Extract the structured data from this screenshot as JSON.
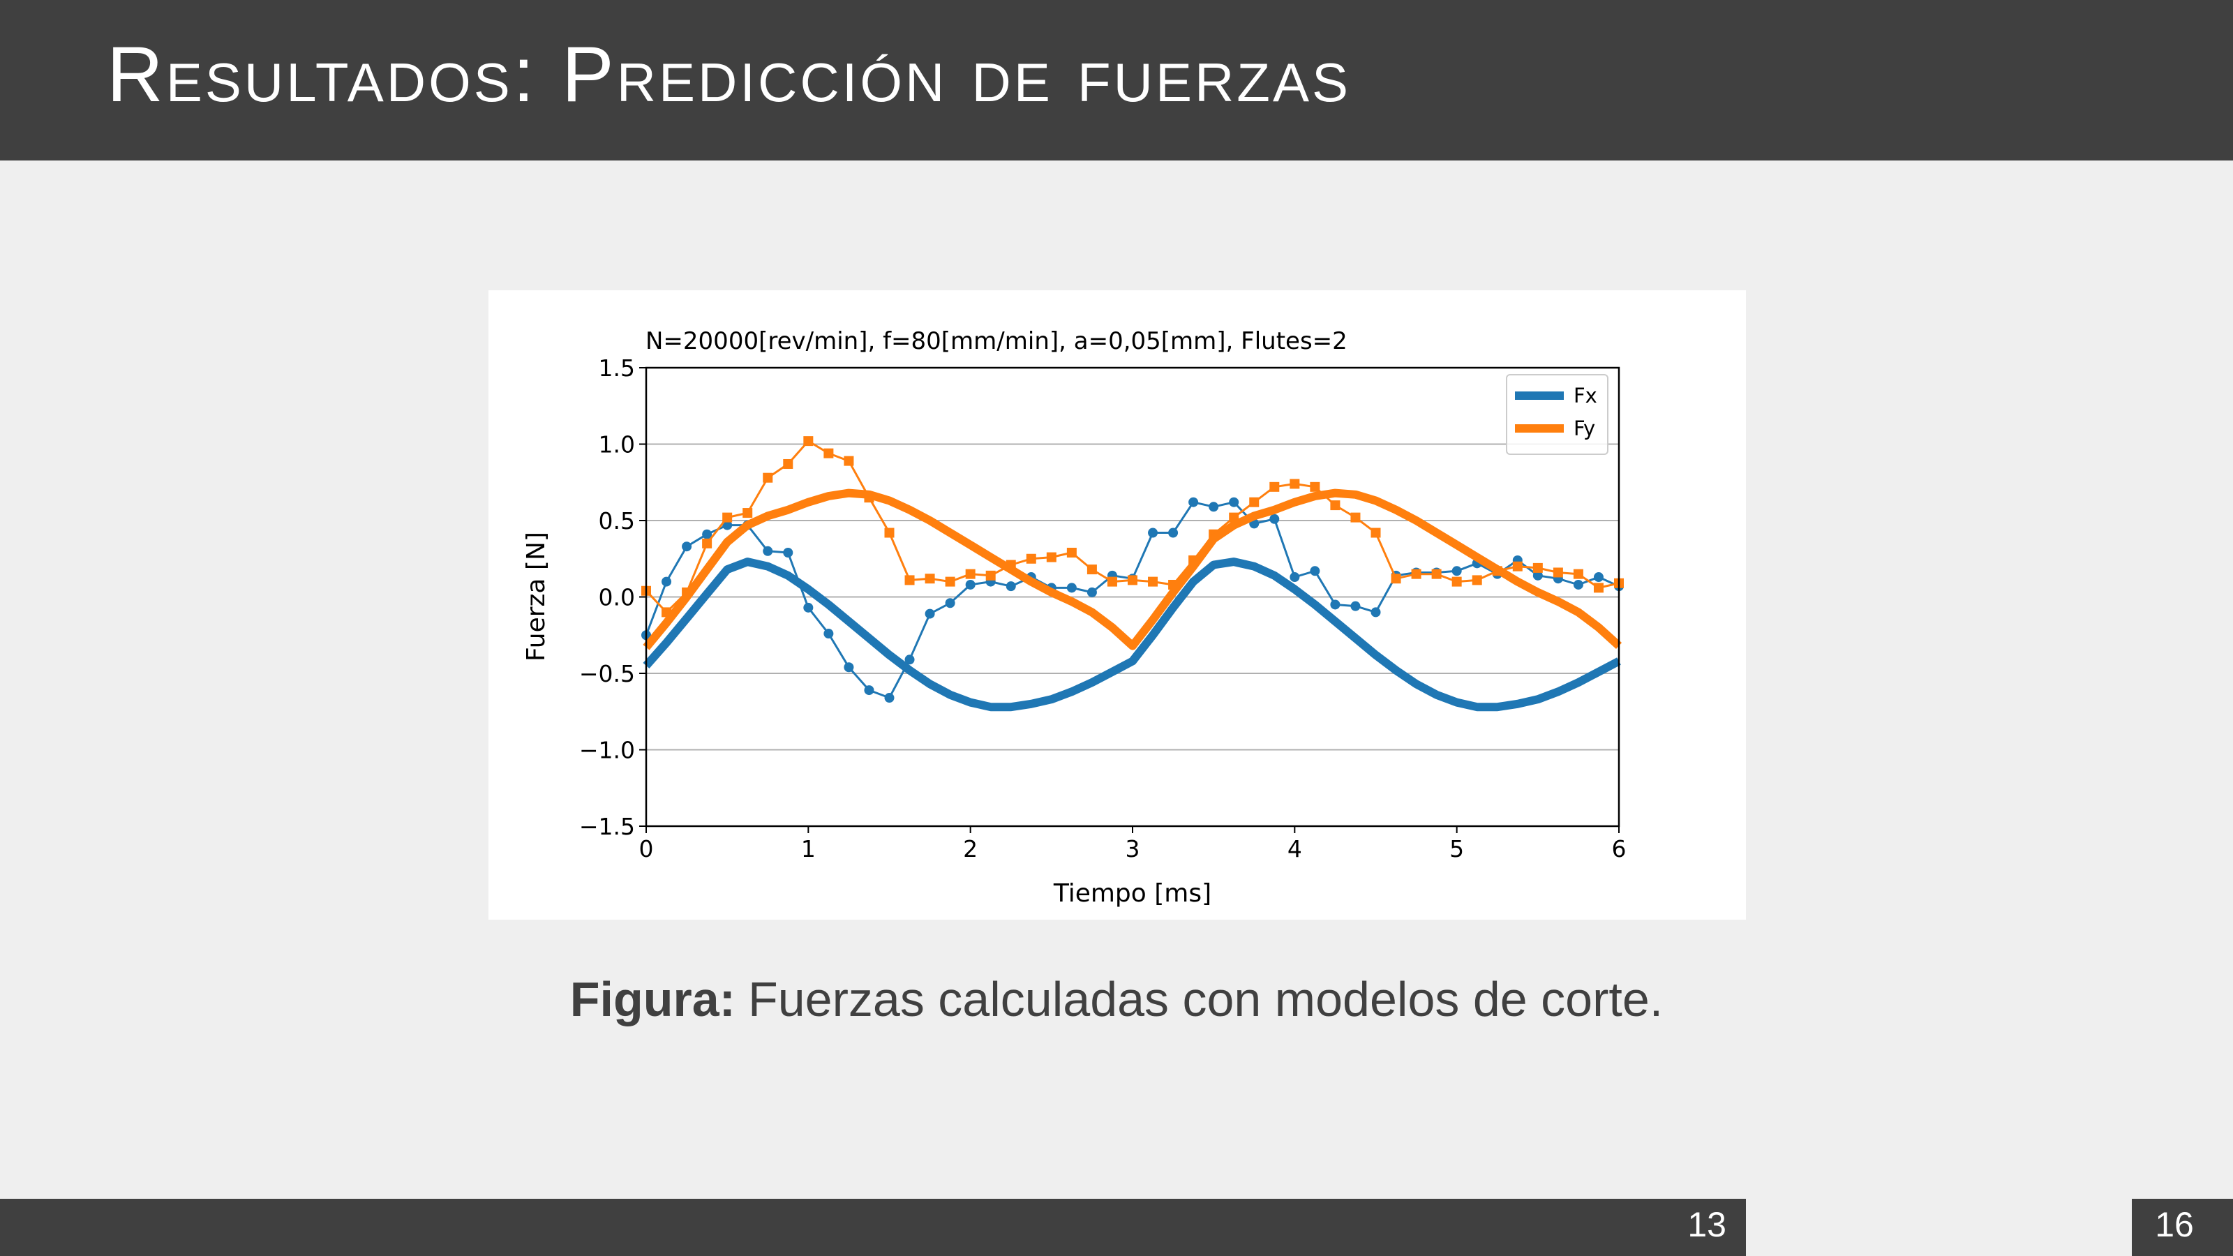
{
  "header": {
    "title": "Resultados: Predicción de fuerzas"
  },
  "chart_data": {
    "type": "line",
    "title": "N=20000[rev/min], f=80[mm/min], a=0,05[mm], Flutes=2",
    "xlabel": "Tiempo [ms]",
    "ylabel": "Fuerza [N]",
    "xlim": [
      0,
      6
    ],
    "ylim": [
      -1.5,
      1.5
    ],
    "xticks": [
      0,
      1,
      2,
      3,
      4,
      5,
      6
    ],
    "yticks": [
      {
        "value": -1.5,
        "label": "−1.5"
      },
      {
        "value": -1,
        "label": "−1.0"
      },
      {
        "value": -0.5,
        "label": "−0.5"
      },
      {
        "value": 0,
        "label": "0.0"
      },
      0.5,
      {
        "value": 1,
        "label": "1.0"
      },
      1.5
    ],
    "grid": "y",
    "legend": "upper right",
    "x": [
      0,
      0.125,
      0.25,
      0.375,
      0.5,
      0.625,
      0.75,
      0.875,
      1,
      1.125,
      1.25,
      1.375,
      1.5,
      1.625,
      1.75,
      1.875,
      2,
      2.125,
      2.25,
      2.375,
      2.5,
      2.625,
      2.75,
      2.875,
      3,
      3.125,
      3.25,
      3.375,
      3.5,
      3.625,
      3.75,
      3.875,
      4,
      4.125,
      4.25,
      4.375,
      4.5,
      4.625,
      4.75,
      4.875,
      5,
      5.125,
      5.25,
      5.375,
      5.5,
      5.625,
      5.75,
      5.875,
      6
    ],
    "series": [
      {
        "color": "#1f77b4",
        "marker": "circle",
        "values": [
          -0.25,
          0.1,
          0.33,
          0.41,
          0.47,
          0.47,
          0.3,
          0.29,
          -0.07,
          -0.24,
          -0.46,
          -0.61,
          -0.66,
          -0.41,
          -0.11,
          -0.04,
          0.08,
          0.1,
          0.07,
          0.13,
          0.06,
          0.06,
          0.03,
          0.14,
          0.12,
          0.42,
          0.42,
          0.62,
          0.59,
          0.62,
          0.48,
          0.51,
          0.13,
          0.17,
          -0.05,
          -0.06,
          -0.1,
          0.14,
          0.16,
          0.16,
          0.17,
          0.22,
          0.15,
          0.24,
          0.14,
          0.12,
          0.08,
          0.13,
          0.07
        ]
      },
      {
        "color": "#ff7f0e",
        "marker": "square",
        "values": [
          0.04,
          -0.1,
          0.03,
          0.35,
          0.52,
          0.55,
          0.78,
          0.87,
          1.02,
          0.94,
          0.89,
          0.65,
          0.42,
          0.11,
          0.12,
          0.1,
          0.15,
          0.14,
          0.21,
          0.25,
          0.26,
          0.29,
          0.18,
          0.1,
          0.11,
          0.1,
          0.08,
          0.24,
          0.41,
          0.52,
          0.62,
          0.72,
          0.74,
          0.72,
          0.6,
          0.52,
          0.42,
          0.12,
          0.15,
          0.15,
          0.1,
          0.11,
          0.17,
          0.2,
          0.19,
          0.16,
          0.15,
          0.06,
          0.09
        ]
      },
      {
        "name": "Fx",
        "color": "#1f77b4",
        "values": [
          -0.45,
          -0.3,
          -0.14,
          0.02,
          0.18,
          0.23,
          0.2,
          0.14,
          0.05,
          -0.05,
          -0.16,
          -0.27,
          -0.38,
          -0.48,
          -0.57,
          -0.64,
          -0.69,
          -0.72,
          -0.72,
          -0.7,
          -0.67,
          -0.62,
          -0.56,
          -0.49,
          -0.42,
          -0.25,
          -0.07,
          0.1,
          0.21,
          0.23,
          0.2,
          0.14,
          0.05,
          -0.05,
          -0.16,
          -0.27,
          -0.38,
          -0.48,
          -0.57,
          -0.64,
          -0.69,
          -0.72,
          -0.72,
          -0.7,
          -0.67,
          -0.62,
          -0.56,
          -0.49,
          -0.42
        ]
      },
      {
        "name": "Fy",
        "color": "#ff7f0e",
        "values": [
          -0.33,
          -0.17,
          0.0,
          0.18,
          0.36,
          0.47,
          0.53,
          0.57,
          0.62,
          0.66,
          0.68,
          0.67,
          0.63,
          0.57,
          0.5,
          0.42,
          0.34,
          0.26,
          0.18,
          0.1,
          0.03,
          -0.03,
          -0.1,
          -0.2,
          -0.32,
          -0.15,
          0.03,
          0.2,
          0.38,
          0.47,
          0.53,
          0.57,
          0.62,
          0.66,
          0.68,
          0.67,
          0.63,
          0.57,
          0.5,
          0.42,
          0.34,
          0.26,
          0.18,
          0.1,
          0.03,
          -0.03,
          -0.1,
          -0.2,
          -0.32
        ]
      }
    ]
  },
  "caption": {
    "label": "Figura:",
    "text": "Fuerzas calculadas con modelos de corte."
  },
  "footer": {
    "page": 13,
    "total": 16
  }
}
